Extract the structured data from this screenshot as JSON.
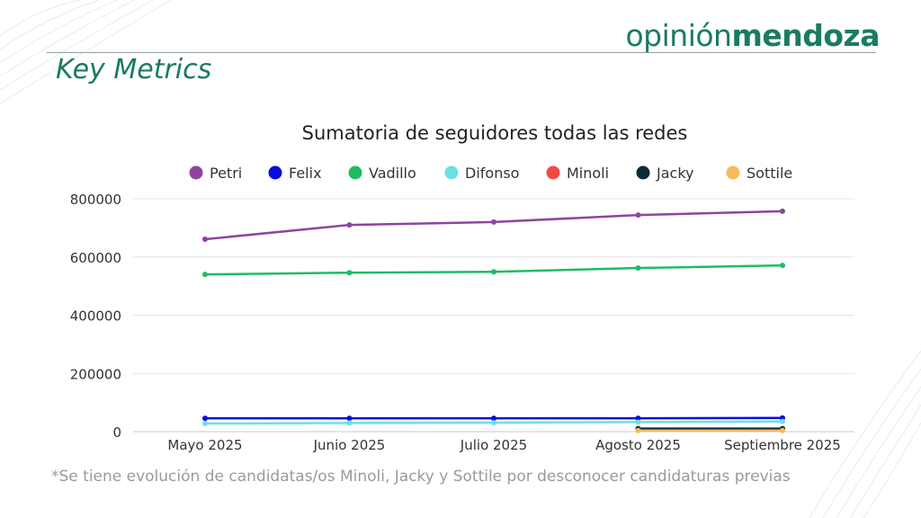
{
  "brand": {
    "light": "opinión",
    "bold": "mendoza"
  },
  "heading": "Key Metrics",
  "footnote": "*Se tiene evolución de candidatas/os Minoli, Jacky y Sottile por desconocer candidaturas previas",
  "chart_data": {
    "type": "line",
    "title": "Sumatoria de seguidores todas las redes",
    "xlabel": "",
    "ylabel": "",
    "categories": [
      "Mayo 2025",
      "Junio 2025",
      "Julio 2025",
      "Agosto 2025",
      "Septiembre 2025"
    ],
    "ylim": [
      0,
      800000
    ],
    "yticks": [
      "0",
      "200000",
      "400000",
      "600000",
      "800000"
    ],
    "grid": true,
    "legend": "top",
    "series": [
      {
        "name": "Petri",
        "color": "#8e44a0",
        "values": [
          661000,
          710000,
          720000,
          744000,
          757000
        ]
      },
      {
        "name": "Felix",
        "color": "#0a0adc",
        "values": [
          46000,
          46000,
          46000,
          46000,
          47000
        ]
      },
      {
        "name": "Vadillo",
        "color": "#1ebc64",
        "values": [
          540000,
          546000,
          549000,
          562000,
          571000
        ]
      },
      {
        "name": "Difonso",
        "color": "#6be0e4",
        "values": [
          28000,
          30000,
          31000,
          33000,
          35000
        ]
      },
      {
        "name": "Minoli",
        "color": "#f04a44",
        "values": [
          null,
          null,
          null,
          11000,
          11000
        ]
      },
      {
        "name": "Jacky",
        "color": "#0c2a3a",
        "values": [
          null,
          null,
          null,
          10000,
          10000
        ]
      },
      {
        "name": "Sottile",
        "color": "#f8b95c",
        "values": [
          null,
          null,
          null,
          4000,
          4000
        ]
      }
    ]
  }
}
